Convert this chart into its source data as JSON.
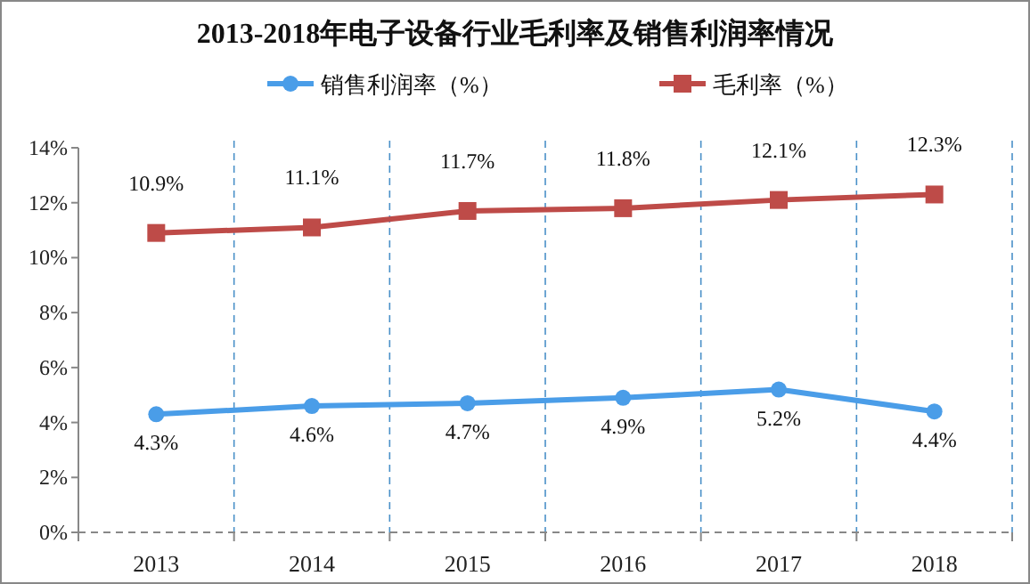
{
  "chart_data": {
    "type": "line",
    "title": "2013-2018年电子设备行业毛利率及销售利润率情况",
    "categories": [
      "2013",
      "2014",
      "2015",
      "2016",
      "2017",
      "2018"
    ],
    "series": [
      {
        "name": "销售利润率（%）",
        "color": "#4a9de8",
        "marker": "circle",
        "values": [
          4.3,
          4.6,
          4.7,
          4.9,
          5.2,
          4.4
        ],
        "value_labels": [
          "4.3%",
          "4.6%",
          "4.7%",
          "4.9%",
          "5.2%",
          "4.4%"
        ]
      },
      {
        "name": "毛利率（%）",
        "color": "#be4b48",
        "marker": "square",
        "values": [
          10.9,
          11.1,
          11.7,
          11.8,
          12.1,
          12.3
        ],
        "value_labels": [
          "10.9%",
          "11.1%",
          "11.7%",
          "11.8%",
          "12.1%",
          "12.3%"
        ]
      }
    ],
    "ylim": [
      0,
      14
    ],
    "yticks": [
      {
        "value": 0,
        "label": "0%"
      },
      {
        "value": 2,
        "label": "2%"
      },
      {
        "value": 4,
        "label": "4%"
      },
      {
        "value": 6,
        "label": "6%"
      },
      {
        "value": 8,
        "label": "8%"
      },
      {
        "value": 10,
        "label": "10%"
      },
      {
        "value": 12,
        "label": "12%"
      },
      {
        "value": 14,
        "label": "14%"
      }
    ],
    "grid": "x",
    "legend": "top",
    "line_style": "solid"
  }
}
